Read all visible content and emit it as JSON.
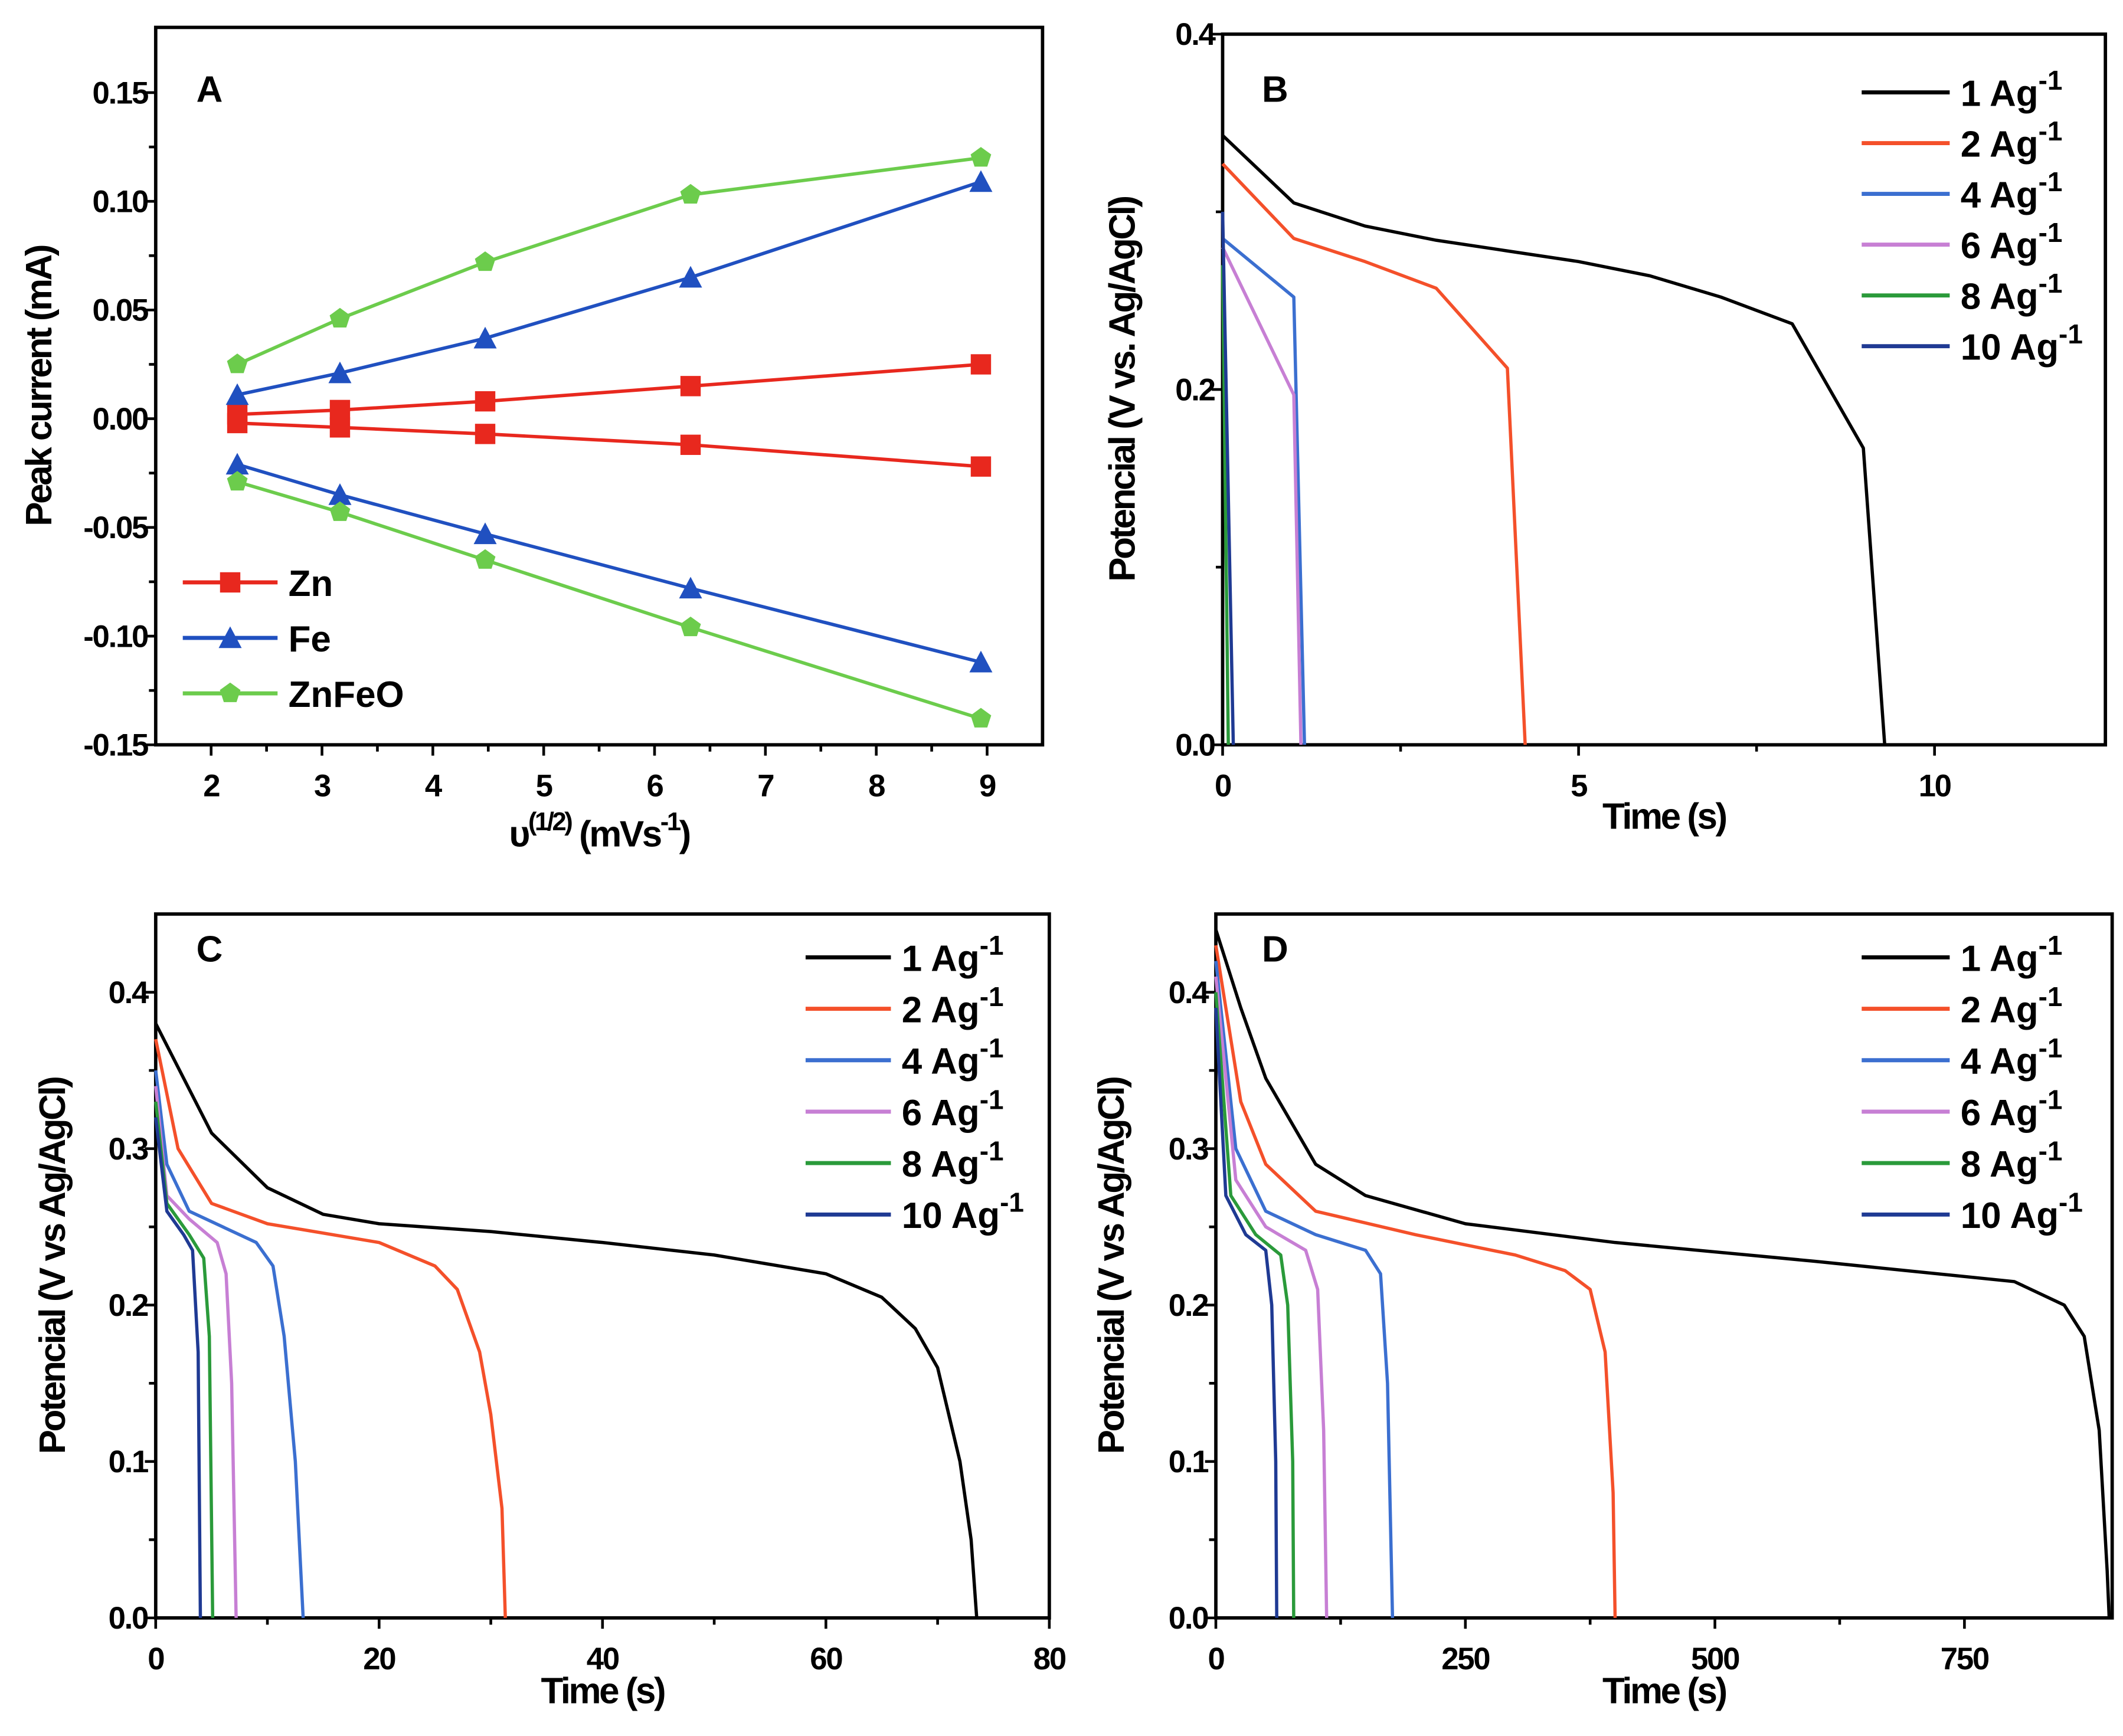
{
  "chart_data": [
    {
      "panel": "A",
      "type": "line",
      "xlabel_parts": [
        "υ",
        "(1/2)",
        " (mVs",
        "-1",
        ")"
      ],
      "ylabel": "Peak current (mA)",
      "xlim": [
        1.5,
        9.5
      ],
      "ylim": [
        -0.15,
        0.18
      ],
      "xticks": [
        2,
        3,
        4,
        5,
        6,
        7,
        8,
        9
      ],
      "xtick_labels": [
        "2",
        "3",
        "4",
        "5",
        "6",
        "7",
        "8",
        "9"
      ],
      "yticks": [
        -0.15,
        -0.1,
        -0.05,
        0,
        0.05,
        0.1,
        0.15
      ],
      "ytick_labels": [
        "-0.15",
        "-0.10",
        "-0.05",
        "0.00",
        "0.05",
        "0.10",
        "0.15"
      ],
      "legend_position": "bottom-left",
      "x": [
        2.236,
        3.162,
        4.472,
        6.325,
        8.944
      ],
      "series": [
        {
          "name": "Zn",
          "color": "#e8281e",
          "marker": "square",
          "legend": true,
          "values": [
            0.002,
            0.004,
            0.008,
            0.015,
            0.025
          ]
        },
        {
          "name": "Zn",
          "color": "#e8281e",
          "marker": "square",
          "legend": false,
          "values": [
            -0.002,
            -0.004,
            -0.007,
            -0.012,
            -0.022
          ]
        },
        {
          "name": "Fe",
          "color": "#2050c0",
          "marker": "triangle",
          "legend": true,
          "values": [
            0.011,
            0.021,
            0.037,
            0.065,
            0.109
          ]
        },
        {
          "name": "Fe",
          "color": "#2050c0",
          "marker": "triangle",
          "legend": false,
          "values": [
            -0.021,
            -0.035,
            -0.053,
            -0.078,
            -0.112
          ]
        },
        {
          "name": "ZnFeO",
          "color": "#6ccc4c",
          "marker": "pentagon",
          "legend": true,
          "values": [
            0.025,
            0.046,
            0.072,
            0.103,
            0.12
          ]
        },
        {
          "name": "ZnFeO",
          "color": "#6ccc4c",
          "marker": "pentagon",
          "legend": false,
          "values": [
            -0.029,
            -0.043,
            -0.065,
            -0.096,
            -0.138
          ]
        }
      ]
    },
    {
      "panel": "B",
      "type": "line",
      "xlabel": "Time (s)",
      "ylabel": "Potencial (V vs. Ag/AgCl)",
      "xlim": [
        0,
        12.4
      ],
      "ylim": [
        0,
        0.4
      ],
      "xticks": [
        0,
        5,
        10
      ],
      "xtick_labels": [
        "0",
        "5",
        "10"
      ],
      "yticks": [
        0,
        0.2,
        0.4
      ],
      "ytick_labels": [
        "0.0",
        "0.2",
        "0.4"
      ],
      "legend_position": "top-right",
      "series": [
        {
          "name": "1 Ag",
          "sup": "-1",
          "color": "#000000",
          "points": [
            [
              0,
              0.343
            ],
            [
              1,
              0.305
            ],
            [
              2,
              0.292
            ],
            [
              3,
              0.284
            ],
            [
              4,
              0.278
            ],
            [
              5,
              0.272
            ],
            [
              6,
              0.264
            ],
            [
              7,
              0.252
            ],
            [
              8,
              0.237
            ],
            [
              9,
              0.167
            ],
            [
              9.3,
              0
            ]
          ]
        },
        {
          "name": "2 Ag",
          "sup": "-1",
          "color": "#f4502a",
          "points": [
            [
              0,
              0.327
            ],
            [
              1,
              0.285
            ],
            [
              2,
              0.272
            ],
            [
              3,
              0.257
            ],
            [
              4,
              0.212
            ],
            [
              4.25,
              0
            ]
          ]
        },
        {
          "name": "4 Ag",
          "sup": "-1",
          "color": "#3b6fd0",
          "points": [
            [
              0,
              0.285
            ],
            [
              1,
              0.252
            ],
            [
              1.15,
              0
            ]
          ]
        },
        {
          "name": "6 Ag",
          "sup": "-1",
          "color": "#c77fd4",
          "points": [
            [
              0,
              0.28
            ],
            [
              1,
              0.197
            ],
            [
              1.1,
              0
            ]
          ]
        },
        {
          "name": "8 Ag",
          "sup": "-1",
          "color": "#2a9a3a",
          "points": [
            [
              0,
              0.27
            ],
            [
              0.08,
              0
            ]
          ]
        },
        {
          "name": "10 Ag",
          "sup": "-1",
          "color": "#1f3a93",
          "points": [
            [
              0,
              0.3
            ],
            [
              0.15,
              0
            ]
          ]
        }
      ]
    },
    {
      "panel": "C",
      "type": "line",
      "xlabel": "Time (s)",
      "ylabel": "Potencial (V vs Ag/AgCl)",
      "xlim": [
        0,
        80
      ],
      "ylim": [
        0,
        0.45
      ],
      "xticks": [
        0,
        20,
        40,
        60,
        80
      ],
      "xtick_labels": [
        "0",
        "20",
        "40",
        "60",
        "80"
      ],
      "yticks": [
        0,
        0.1,
        0.2,
        0.3,
        0.4
      ],
      "ytick_labels": [
        "0.0",
        "0.1",
        "0.2",
        "0.3",
        "0.4"
      ],
      "legend_position": "top-right",
      "series": [
        {
          "name": "1 Ag",
          "sup": "-1",
          "color": "#000000",
          "points": [
            [
              0,
              0.38
            ],
            [
              5,
              0.31
            ],
            [
              10,
              0.275
            ],
            [
              15,
              0.258
            ],
            [
              20,
              0.252
            ],
            [
              30,
              0.247
            ],
            [
              40,
              0.24
            ],
            [
              50,
              0.232
            ],
            [
              60,
              0.22
            ],
            [
              65,
              0.205
            ],
            [
              68,
              0.185
            ],
            [
              70,
              0.16
            ],
            [
              72,
              0.1
            ],
            [
              73,
              0.05
            ],
            [
              73.5,
              0
            ]
          ]
        },
        {
          "name": "2 Ag",
          "sup": "-1",
          "color": "#f4502a",
          "points": [
            [
              0,
              0.37
            ],
            [
              2,
              0.3
            ],
            [
              5,
              0.265
            ],
            [
              10,
              0.252
            ],
            [
              20,
              0.24
            ],
            [
              25,
              0.225
            ],
            [
              27,
              0.21
            ],
            [
              29,
              0.17
            ],
            [
              30,
              0.13
            ],
            [
              31,
              0.07
            ],
            [
              31.3,
              0
            ]
          ]
        },
        {
          "name": "4 Ag",
          "sup": "-1",
          "color": "#3b6fd0",
          "points": [
            [
              0,
              0.35
            ],
            [
              1,
              0.29
            ],
            [
              3,
              0.26
            ],
            [
              6,
              0.25
            ],
            [
              9,
              0.24
            ],
            [
              10.5,
              0.225
            ],
            [
              11.5,
              0.18
            ],
            [
              12.5,
              0.1
            ],
            [
              13.2,
              0
            ]
          ]
        },
        {
          "name": "6 Ag",
          "sup": "-1",
          "color": "#c77fd4",
          "points": [
            [
              0,
              0.34
            ],
            [
              1,
              0.27
            ],
            [
              3,
              0.255
            ],
            [
              5.5,
              0.24
            ],
            [
              6.3,
              0.22
            ],
            [
              6.8,
              0.15
            ],
            [
              7.2,
              0
            ]
          ]
        },
        {
          "name": "8 Ag",
          "sup": "-1",
          "color": "#2a9a3a",
          "points": [
            [
              0,
              0.33
            ],
            [
              1,
              0.265
            ],
            [
              3,
              0.245
            ],
            [
              4.3,
              0.23
            ],
            [
              4.8,
              0.18
            ],
            [
              5.1,
              0
            ]
          ]
        },
        {
          "name": "10 Ag",
          "sup": "-1",
          "color": "#1f3a93",
          "points": [
            [
              0,
              0.32
            ],
            [
              1,
              0.26
            ],
            [
              2.5,
              0.245
            ],
            [
              3.3,
              0.235
            ],
            [
              3.8,
              0.17
            ],
            [
              4,
              0
            ]
          ]
        }
      ]
    },
    {
      "panel": "D",
      "type": "line",
      "xlabel": "Time (s)",
      "ylabel": "Potencial (V vs Ag/AgCl)",
      "xlim": [
        0,
        898
      ],
      "ylim": [
        0,
        0.45
      ],
      "xticks": [
        0,
        250,
        500,
        750
      ],
      "xtick_labels": [
        "0",
        "250",
        "500",
        "750"
      ],
      "yticks": [
        0,
        0.1,
        0.2,
        0.3,
        0.4
      ],
      "ytick_labels": [
        "0.0",
        "0.1",
        "0.2",
        "0.3",
        "0.4"
      ],
      "legend_position": "top-right",
      "series": [
        {
          "name": "1 Ag",
          "sup": "-1",
          "color": "#000000",
          "points": [
            [
              0,
              0.44
            ],
            [
              25,
              0.39
            ],
            [
              50,
              0.345
            ],
            [
              100,
              0.29
            ],
            [
              150,
              0.27
            ],
            [
              250,
              0.252
            ],
            [
              400,
              0.24
            ],
            [
              600,
              0.228
            ],
            [
              800,
              0.215
            ],
            [
              850,
              0.2
            ],
            [
              870,
              0.18
            ],
            [
              885,
              0.12
            ],
            [
              893,
              0.03
            ],
            [
              895,
              0
            ]
          ]
        },
        {
          "name": "2 Ag",
          "sup": "-1",
          "color": "#f4502a",
          "points": [
            [
              0,
              0.43
            ],
            [
              25,
              0.33
            ],
            [
              50,
              0.29
            ],
            [
              100,
              0.26
            ],
            [
              200,
              0.245
            ],
            [
              300,
              0.232
            ],
            [
              350,
              0.222
            ],
            [
              375,
              0.21
            ],
            [
              390,
              0.17
            ],
            [
              398,
              0.08
            ],
            [
              400,
              0
            ]
          ]
        },
        {
          "name": "4 Ag",
          "sup": "-1",
          "color": "#3b6fd0",
          "points": [
            [
              0,
              0.42
            ],
            [
              20,
              0.3
            ],
            [
              50,
              0.26
            ],
            [
              100,
              0.245
            ],
            [
              150,
              0.235
            ],
            [
              165,
              0.22
            ],
            [
              172,
              0.15
            ],
            [
              177,
              0
            ]
          ]
        },
        {
          "name": "6 Ag",
          "sup": "-1",
          "color": "#c77fd4",
          "points": [
            [
              0,
              0.41
            ],
            [
              20,
              0.28
            ],
            [
              50,
              0.25
            ],
            [
              90,
              0.235
            ],
            [
              102,
              0.21
            ],
            [
              108,
              0.12
            ],
            [
              111,
              0
            ]
          ]
        },
        {
          "name": "8 Ag",
          "sup": "-1",
          "color": "#2a9a3a",
          "points": [
            [
              0,
              0.4
            ],
            [
              15,
              0.27
            ],
            [
              40,
              0.245
            ],
            [
              65,
              0.232
            ],
            [
              72,
              0.2
            ],
            [
              77,
              0.1
            ],
            [
              78,
              0
            ]
          ]
        },
        {
          "name": "10 Ag",
          "sup": "-1",
          "color": "#1f3a93",
          "points": [
            [
              0,
              0.39
            ],
            [
              10,
              0.27
            ],
            [
              30,
              0.245
            ],
            [
              50,
              0.235
            ],
            [
              56,
              0.2
            ],
            [
              60,
              0.1
            ],
            [
              61,
              0
            ]
          ]
        }
      ]
    }
  ]
}
